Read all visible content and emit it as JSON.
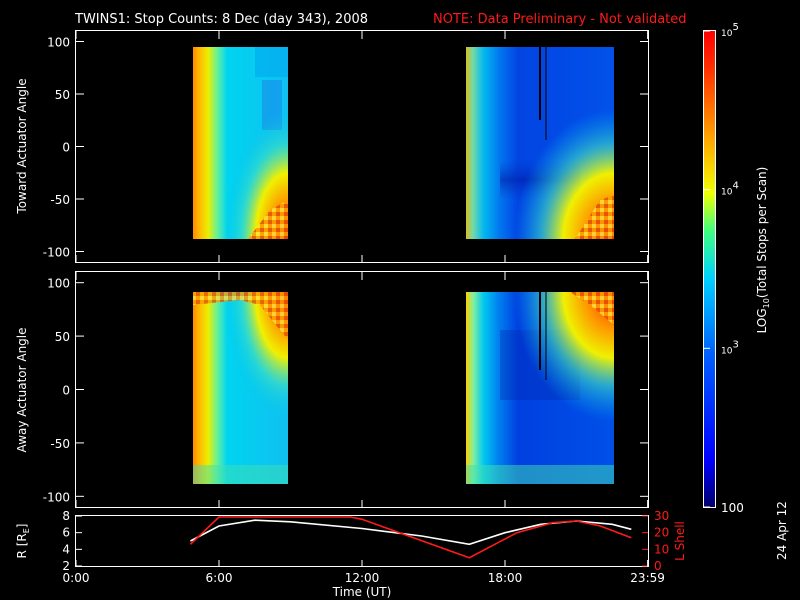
{
  "title": "TWINS1: Stop Counts:  8 Dec (day 343), 2008",
  "note": "NOTE: Data Preliminary - Not validated",
  "footer_date": "24 Apr 12",
  "colors": {
    "note": "#ff1a1a",
    "lshell": "#ff1a1a",
    "radius": "#ffffff",
    "background": "#000000"
  },
  "chart_data": [
    {
      "type": "heatmap",
      "ylabel": "Toward Actuator Angle",
      "ylim": [
        -110,
        110
      ],
      "yticks": [
        "100",
        "50",
        "0",
        "-50",
        "-100"
      ],
      "data_blocks": [
        {
          "x_start": "4:50",
          "x_end": "8:50",
          "y_range": [
            -90,
            90
          ]
        },
        {
          "x_start": "16:30",
          "x_end": "23:10",
          "y_range": [
            -90,
            90
          ]
        }
      ]
    },
    {
      "type": "heatmap",
      "ylabel": "Away Actuator Angle",
      "ylim": [
        -110,
        110
      ],
      "yticks": [
        "100",
        "50",
        "0",
        "-50",
        "-100"
      ],
      "data_blocks": [
        {
          "x_start": "4:50",
          "x_end": "8:50",
          "y_range": [
            -90,
            90
          ]
        },
        {
          "x_start": "16:30",
          "x_end": "23:10",
          "y_range": [
            -90,
            90
          ]
        }
      ]
    },
    {
      "type": "line",
      "xlabel": "Time (UT)",
      "xticks": [
        "0:00",
        "6:00",
        "12:00",
        "18:00",
        "23:59"
      ],
      "ylabel_left": "R [R",
      "ylabel_left_sub": "E",
      "ylabel_left_end": "]",
      "ylim_left": [
        2,
        8
      ],
      "yticks_left": [
        "8",
        "6",
        "4",
        "2"
      ],
      "ylabel_right": "L Shell",
      "ylim_right": [
        0,
        30
      ],
      "yticks_right": [
        "30",
        "20",
        "10",
        "0"
      ],
      "series": [
        {
          "axis": "left",
          "x": [
            4.8,
            6.0,
            7.5,
            9.0,
            12.0,
            14.5,
            16.5,
            18.0,
            19.5,
            21.0,
            22.5,
            23.3
          ],
          "y": [
            5.0,
            6.8,
            7.5,
            7.3,
            6.5,
            5.6,
            4.6,
            6.0,
            7.0,
            7.4,
            7.0,
            6.4
          ]
        },
        {
          "axis": "right",
          "x": [
            4.8,
            6.0,
            6.1,
            11.5,
            12.0,
            16.5,
            18.5,
            20.0,
            21.0,
            22.0,
            23.3
          ],
          "y": [
            13,
            30,
            30,
            30,
            28,
            5,
            20,
            26,
            27,
            24,
            17
          ]
        }
      ]
    },
    {
      "type": "heatmap",
      "title": "LOG",
      "title_sub": "10",
      "title_end": "(Total Stops per Scan)",
      "scale": "log",
      "range": [
        100,
        100000
      ],
      "ticks": [
        {
          "base": "10",
          "exp": "5"
        },
        {
          "base": "10",
          "exp": "4"
        },
        {
          "base": "10",
          "exp": "3"
        },
        {
          "base": "100",
          "exp": ""
        }
      ]
    }
  ]
}
